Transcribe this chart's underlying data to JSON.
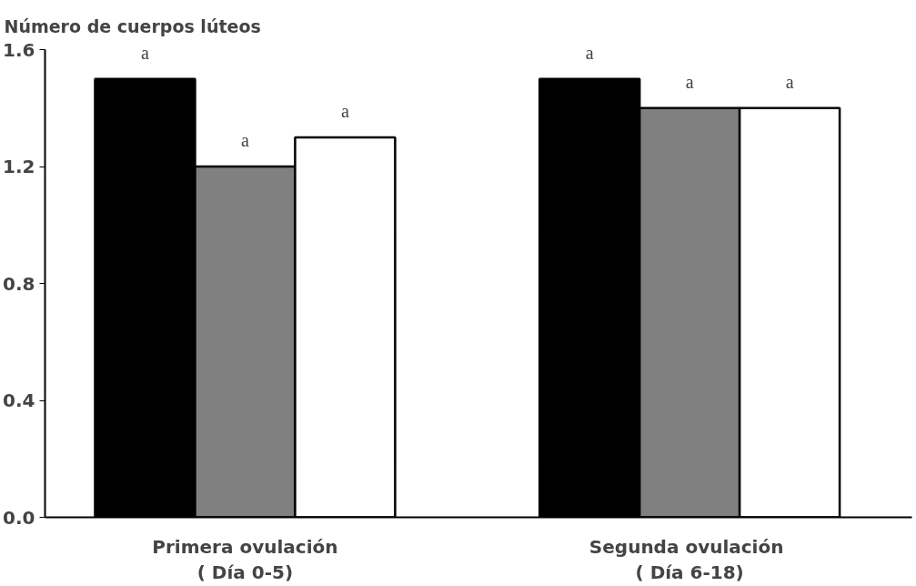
{
  "chart_data": {
    "type": "bar",
    "ylabel": "Número de cuerpos lúteos",
    "categories": [
      "Primera ovulación\n( Día 0-5)",
      "Segunda  ovulación\n( Día 6-18)"
    ],
    "series": [
      {
        "color": "#000000",
        "values": [
          1.5,
          1.5
        ],
        "value_labels": [
          "a",
          "a"
        ]
      },
      {
        "color": "#808080",
        "values": [
          1.2,
          1.4
        ],
        "value_labels": [
          "a",
          "a"
        ]
      },
      {
        "color": "#ffffff",
        "values": [
          1.3,
          1.4
        ],
        "value_labels": [
          "a",
          "a"
        ]
      }
    ],
    "ylim": [
      0,
      1.6
    ],
    "yticks": [
      {
        "value": 0,
        "label": "0.0"
      },
      {
        "value": 0.4,
        "label": "0.4"
      },
      {
        "value": 0.8,
        "label": "0.8"
      },
      {
        "value": 1.2,
        "label": "1.2"
      },
      {
        "value": 1.6,
        "label": "1.6"
      }
    ],
    "grid": false
  }
}
